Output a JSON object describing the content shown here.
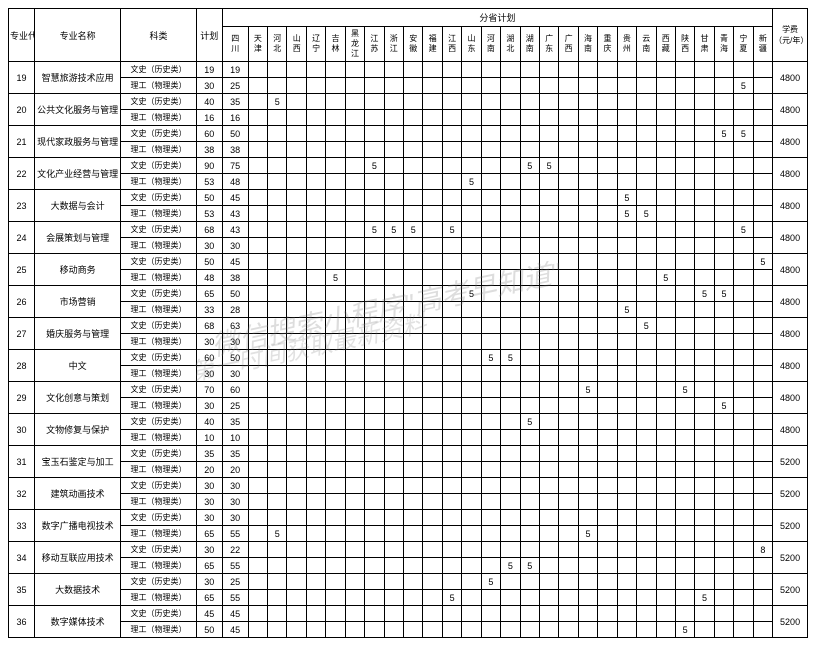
{
  "headers": {
    "code": "专业代号",
    "major": "专业名称",
    "category": "科类",
    "plan": "计划",
    "province_plan": "分省计划",
    "tuition": "学费（元/年）",
    "provinces": [
      "四川",
      "天津",
      "河北",
      "山西",
      "辽宁",
      "吉林",
      "黑龙江",
      "江苏",
      "浙江",
      "安徽",
      "福建",
      "江西",
      "山东",
      "河南",
      "湖北",
      "湖南",
      "广东",
      "广西",
      "海南",
      "重庆",
      "贵州",
      "云南",
      "西藏",
      "陕西",
      "甘肃",
      "青海",
      "宁夏",
      "新疆"
    ]
  },
  "categories": {
    "ws": "文史（历史类）",
    "lg": "理工（物理类）"
  },
  "majors": [
    {
      "code": "19",
      "name": "智慧旅游技术应用",
      "tuition": "4800",
      "rows": [
        {
          "cat": "ws",
          "plan": "19",
          "sichuan": "19",
          "cells": {}
        },
        {
          "cat": "lg",
          "plan": "30",
          "sichuan": "25",
          "cells": {
            "26": "5"
          }
        }
      ]
    },
    {
      "code": "20",
      "name": "公共文化服务与管理",
      "tuition": "4800",
      "rows": [
        {
          "cat": "ws",
          "plan": "40",
          "sichuan": "35",
          "cells": {
            "2": "5"
          }
        },
        {
          "cat": "lg",
          "plan": "16",
          "sichuan": "16",
          "cells": {}
        }
      ]
    },
    {
      "code": "21",
      "name": "现代家政服务与管理",
      "tuition": "4800",
      "rows": [
        {
          "cat": "ws",
          "plan": "60",
          "sichuan": "50",
          "cells": {
            "25": "5",
            "26": "5"
          }
        },
        {
          "cat": "lg",
          "plan": "38",
          "sichuan": "38",
          "cells": {}
        }
      ]
    },
    {
      "code": "22",
      "name": "文化产业经营与管理",
      "tuition": "4800",
      "rows": [
        {
          "cat": "ws",
          "plan": "90",
          "sichuan": "75",
          "cells": {
            "7": "5",
            "15": "5",
            "16": "5"
          }
        },
        {
          "cat": "lg",
          "plan": "53",
          "sichuan": "48",
          "cells": {
            "12": "5"
          }
        }
      ]
    },
    {
      "code": "23",
      "name": "大数据与会计",
      "tuition": "4800",
      "rows": [
        {
          "cat": "ws",
          "plan": "50",
          "sichuan": "45",
          "cells": {
            "20": "5"
          }
        },
        {
          "cat": "lg",
          "plan": "53",
          "sichuan": "43",
          "cells": {
            "20": "5",
            "21": "5"
          }
        }
      ]
    },
    {
      "code": "24",
      "name": "会展策划与管理",
      "tuition": "4800",
      "rows": [
        {
          "cat": "ws",
          "plan": "68",
          "sichuan": "43",
          "cells": {
            "7": "5",
            "8": "5",
            "9": "5",
            "11": "5",
            "26": "5"
          }
        },
        {
          "cat": "lg",
          "plan": "30",
          "sichuan": "30",
          "cells": {}
        }
      ]
    },
    {
      "code": "25",
      "name": "移动商务",
      "tuition": "4800",
      "rows": [
        {
          "cat": "ws",
          "plan": "50",
          "sichuan": "45",
          "cells": {
            "27": "5"
          }
        },
        {
          "cat": "lg",
          "plan": "48",
          "sichuan": "38",
          "cells": {
            "5": "5",
            "22": "5"
          }
        }
      ]
    },
    {
      "code": "26",
      "name": "市场营销",
      "tuition": "4800",
      "rows": [
        {
          "cat": "ws",
          "plan": "65",
          "sichuan": "50",
          "cells": {
            "12": "5",
            "24": "5",
            "25": "5"
          }
        },
        {
          "cat": "lg",
          "plan": "33",
          "sichuan": "28",
          "cells": {
            "20": "5"
          }
        }
      ]
    },
    {
      "code": "27",
      "name": "婚庆服务与管理",
      "tuition": "4800",
      "rows": [
        {
          "cat": "ws",
          "plan": "68",
          "sichuan": "63",
          "cells": {
            "21": "5"
          }
        },
        {
          "cat": "lg",
          "plan": "30",
          "sichuan": "30",
          "cells": {}
        }
      ]
    },
    {
      "code": "28",
      "name": "中文",
      "tuition": "4800",
      "rows": [
        {
          "cat": "ws",
          "plan": "60",
          "sichuan": "50",
          "cells": {
            "13": "5",
            "14": "5"
          }
        },
        {
          "cat": "lg",
          "plan": "30",
          "sichuan": "30",
          "cells": {}
        }
      ]
    },
    {
      "code": "29",
      "name": "文化创意与策划",
      "tuition": "4800",
      "rows": [
        {
          "cat": "ws",
          "plan": "70",
          "sichuan": "60",
          "cells": {
            "18": "5",
            "23": "5"
          }
        },
        {
          "cat": "lg",
          "plan": "30",
          "sichuan": "25",
          "cells": {
            "25": "5"
          }
        }
      ]
    },
    {
      "code": "30",
      "name": "文物修复与保护",
      "tuition": "4800",
      "rows": [
        {
          "cat": "ws",
          "plan": "40",
          "sichuan": "35",
          "cells": {
            "15": "5"
          }
        },
        {
          "cat": "lg",
          "plan": "10",
          "sichuan": "10",
          "cells": {}
        }
      ]
    },
    {
      "code": "31",
      "name": "宝玉石鉴定与加工",
      "tuition": "5200",
      "rows": [
        {
          "cat": "ws",
          "plan": "35",
          "sichuan": "35",
          "cells": {}
        },
        {
          "cat": "lg",
          "plan": "20",
          "sichuan": "20",
          "cells": {}
        }
      ]
    },
    {
      "code": "32",
      "name": "建筑动画技术",
      "tuition": "5200",
      "rows": [
        {
          "cat": "ws",
          "plan": "30",
          "sichuan": "30",
          "cells": {}
        },
        {
          "cat": "lg",
          "plan": "30",
          "sichuan": "30",
          "cells": {}
        }
      ]
    },
    {
      "code": "33",
      "name": "数字广播电视技术",
      "tuition": "5200",
      "rows": [
        {
          "cat": "ws",
          "plan": "30",
          "sichuan": "30",
          "cells": {}
        },
        {
          "cat": "lg",
          "plan": "65",
          "sichuan": "55",
          "cells": {
            "2": "5",
            "18": "5"
          }
        }
      ]
    },
    {
      "code": "34",
      "name": "移动互联应用技术",
      "tuition": "5200",
      "rows": [
        {
          "cat": "ws",
          "plan": "30",
          "sichuan": "22",
          "cells": {
            "27": "8"
          }
        },
        {
          "cat": "lg",
          "plan": "65",
          "sichuan": "55",
          "cells": {
            "14": "5",
            "15": "5"
          }
        }
      ]
    },
    {
      "code": "35",
      "name": "大数据技术",
      "tuition": "5200",
      "rows": [
        {
          "cat": "ws",
          "plan": "30",
          "sichuan": "25",
          "cells": {
            "13": "5"
          }
        },
        {
          "cat": "lg",
          "plan": "65",
          "sichuan": "55",
          "cells": {
            "11": "5",
            "24": "5"
          }
        }
      ]
    },
    {
      "code": "36",
      "name": "数字媒体技术",
      "tuition": "5200",
      "rows": [
        {
          "cat": "ws",
          "plan": "45",
          "sichuan": "45",
          "cells": {}
        },
        {
          "cat": "lg",
          "plan": "50",
          "sichuan": "45",
          "cells": {
            "23": "5"
          }
        }
      ]
    }
  ],
  "watermark1": "微信搜索小程序\"高考早知道\"",
  "watermark2": "第一时间获取最新资料"
}
